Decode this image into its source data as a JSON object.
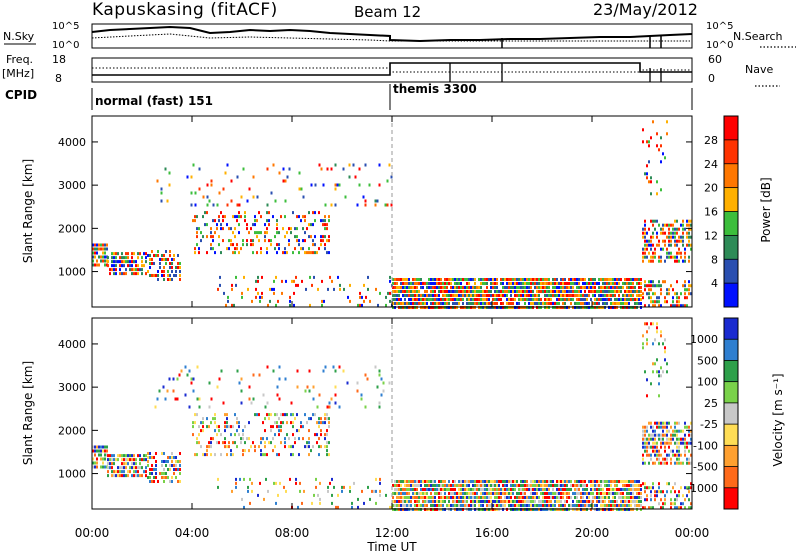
{
  "header": {
    "station": "Kapuskasing (fitACF)",
    "beam": "Beam 12",
    "date": "23/May/2012"
  },
  "top_panels": {
    "nsky_label": "N.Sky",
    "nsky_tick_hi": "10^5",
    "nsky_tick_lo": "10^0",
    "nsearch_label": "N.Search",
    "freq_label": "Freq.",
    "freq_unit": "[MHz]",
    "freq_tick_hi": "18",
    "freq_tick_lo": "8",
    "nave_tick_hi": "60",
    "nave_tick_lo": "0",
    "nave_label": "Nave",
    "cpid_label": "CPID",
    "cpid_a": "normal (fast) 151",
    "cpid_b": "themis 3300"
  },
  "x_axis": {
    "label": "Time UT",
    "ticks": [
      "00:00",
      "04:00",
      "08:00",
      "12:00",
      "16:00",
      "20:00",
      "00:00"
    ]
  },
  "chart_data": [
    {
      "type": "heatmap",
      "name": "power",
      "ylabel": "Slant Range [km]",
      "yticks": [
        1000,
        2000,
        3000,
        4000
      ],
      "ylim": [
        180,
        4600
      ],
      "xlim": [
        0,
        24
      ],
      "colorbar": {
        "label": "Power [dB]",
        "ticks": [
          "28",
          "24",
          "20",
          "16",
          "12",
          "8",
          "4"
        ],
        "colors": [
          "#ff0000",
          "#ff3300",
          "#ff7700",
          "#ffb000",
          "#3cbe3c",
          "#2e8b57",
          "#2a4fb0",
          "#0010ff"
        ]
      },
      "regions": [
        {
          "x": [
            0.0,
            0.6
          ],
          "y": [
            1100,
            1650
          ],
          "density": 0.85
        },
        {
          "x": [
            0.6,
            2.2
          ],
          "y": [
            900,
            1450
          ],
          "density": 0.75
        },
        {
          "x": [
            2.2,
            3.5
          ],
          "y": [
            850,
            1500
          ],
          "density": 0.55
        },
        {
          "x": [
            4.0,
            9.5
          ],
          "y": [
            1400,
            2400
          ],
          "density": 0.3
        },
        {
          "x": [
            2.5,
            12.0
          ],
          "y": [
            2500,
            3500
          ],
          "density": 0.08
        },
        {
          "x": [
            5.0,
            12.0
          ],
          "y": [
            200,
            900
          ],
          "density": 0.12
        },
        {
          "x": [
            12.0,
            22.0
          ],
          "y": [
            180,
            850
          ],
          "density": 0.9
        },
        {
          "x": [
            22.0,
            24.0
          ],
          "y": [
            1200,
            2200
          ],
          "density": 0.6
        },
        {
          "x": [
            22.0,
            24.0
          ],
          "y": [
            180,
            800
          ],
          "density": 0.45
        },
        {
          "x": [
            22.0,
            23.0
          ],
          "y": [
            2800,
            4500
          ],
          "density": 0.15
        }
      ]
    },
    {
      "type": "heatmap",
      "name": "velocity",
      "ylabel": "Slant Range [km]",
      "yticks": [
        1000,
        2000,
        3000,
        4000
      ],
      "ylim": [
        180,
        4600
      ],
      "xlim": [
        0,
        24
      ],
      "colorbar": {
        "label": "Velocity [m s⁻¹]",
        "ticks": [
          "1000",
          "500",
          "100",
          "25",
          "-25",
          "-100",
          "-500",
          "-1000"
        ],
        "colors": [
          "#1a2bd0",
          "#2f7fd0",
          "#2ea04a",
          "#7ad24a",
          "#c8c8c8",
          "#ffdd55",
          "#ffa030",
          "#ff6a1a",
          "#ff0000"
        ]
      },
      "regions": [
        {
          "x": [
            0.0,
            0.6
          ],
          "y": [
            1100,
            1650
          ],
          "density": 0.85
        },
        {
          "x": [
            0.6,
            2.2
          ],
          "y": [
            900,
            1450
          ],
          "density": 0.75
        },
        {
          "x": [
            2.2,
            3.5
          ],
          "y": [
            850,
            1500
          ],
          "density": 0.55
        },
        {
          "x": [
            4.0,
            9.5
          ],
          "y": [
            1400,
            2400
          ],
          "density": 0.3
        },
        {
          "x": [
            2.5,
            12.0
          ],
          "y": [
            2500,
            3500
          ],
          "density": 0.08
        },
        {
          "x": [
            5.0,
            12.0
          ],
          "y": [
            200,
            900
          ],
          "density": 0.12
        },
        {
          "x": [
            12.0,
            22.0
          ],
          "y": [
            180,
            850
          ],
          "density": 0.9
        },
        {
          "x": [
            22.0,
            24.0
          ],
          "y": [
            1200,
            2200
          ],
          "density": 0.6
        },
        {
          "x": [
            22.0,
            24.0
          ],
          "y": [
            180,
            800
          ],
          "density": 0.45
        },
        {
          "x": [
            22.0,
            23.0
          ],
          "y": [
            2800,
            4500
          ],
          "density": 0.15
        }
      ]
    }
  ]
}
